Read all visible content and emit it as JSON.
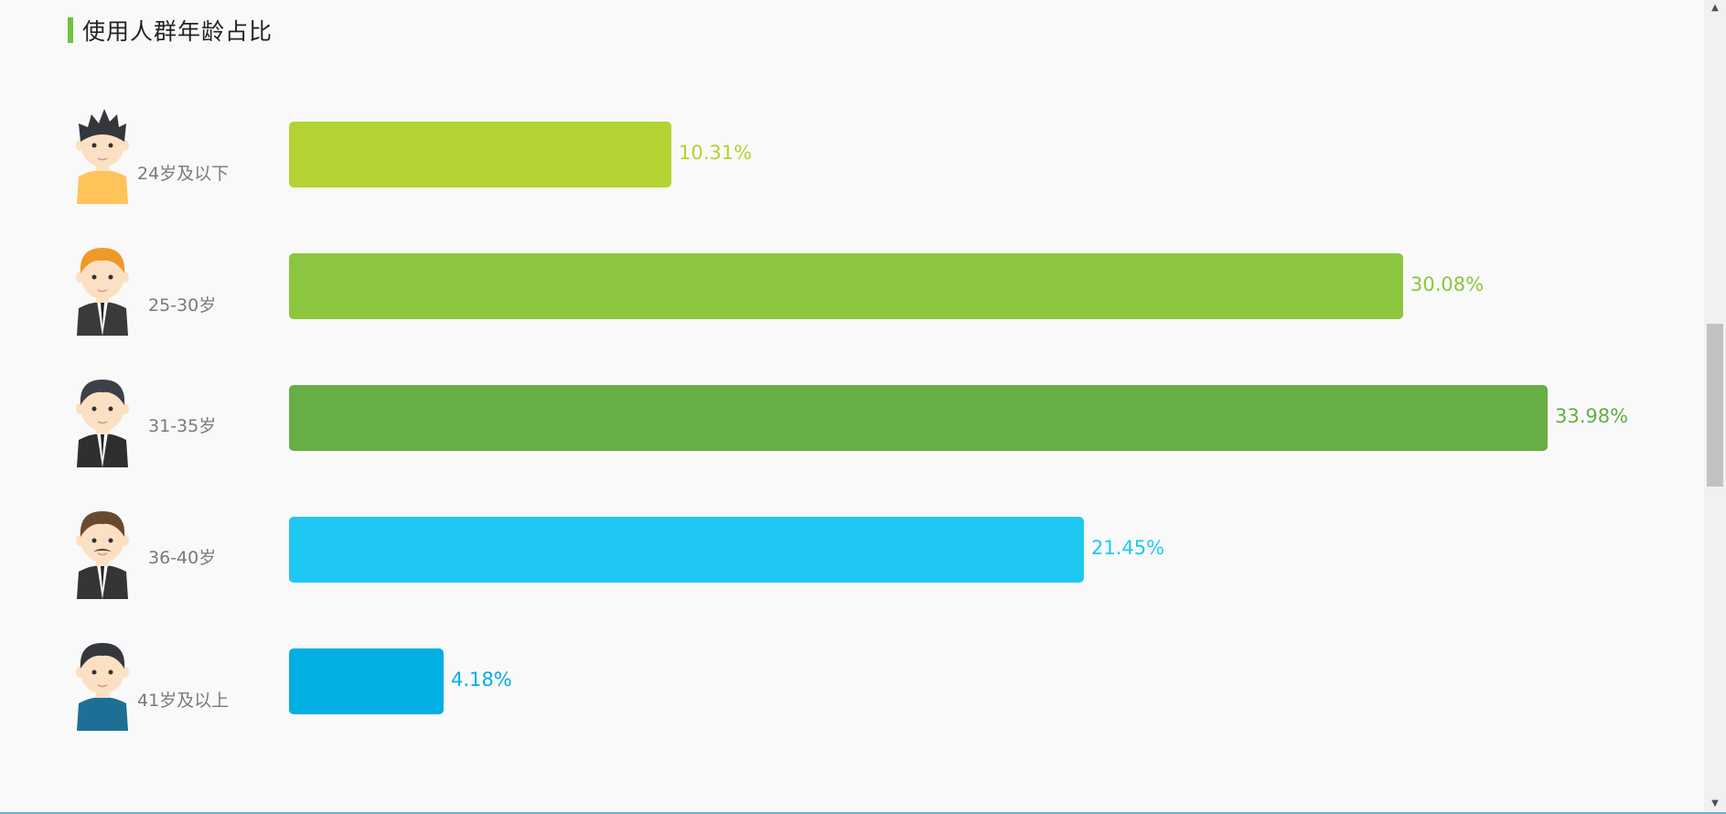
{
  "section": {
    "title": "使用人群年龄占比"
  },
  "colors": {
    "accent": "#6cc53a"
  },
  "chart_data": {
    "type": "bar",
    "orientation": "horizontal",
    "categories": [
      "24岁及以下",
      "25-30岁",
      "31-35岁",
      "36-40岁",
      "41岁及以上"
    ],
    "values": [
      10.31,
      30.08,
      33.98,
      21.45,
      4.18
    ],
    "value_labels": [
      "10.31%",
      "30.08%",
      "33.98%",
      "21.45%",
      "4.18%"
    ],
    "colors": [
      "#b3d333",
      "#8cc63f",
      "#66ae45",
      "#1fc8f2",
      "#02afe2"
    ],
    "avatars": [
      "spiky-hair-boy-avatar",
      "orange-hair-man-avatar",
      "suit-man-avatar",
      "mustache-man-avatar",
      "older-man-avatar"
    ],
    "unit": "%",
    "grid": false,
    "legend": "none"
  },
  "scrollbar": {
    "up_icon": "scroll-up-arrow-icon",
    "down_icon": "scroll-down-arrow-icon"
  }
}
